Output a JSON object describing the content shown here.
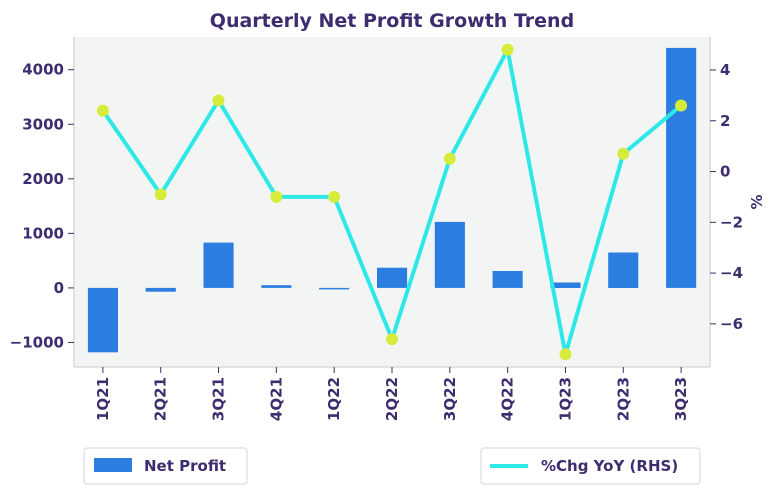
{
  "chart_data": {
    "type": "bar",
    "title": "Quarterly Net Profit Growth Trend",
    "categories": [
      "1Q21",
      "2Q21",
      "3Q21",
      "4Q21",
      "1Q22",
      "2Q22",
      "3Q22",
      "4Q22",
      "1Q23",
      "2Q23",
      "3Q23"
    ],
    "series": [
      {
        "name": "Net Profit",
        "type": "bar",
        "axis": "left",
        "color": "#2b7de0",
        "values": [
          -1180,
          -70,
          830,
          50,
          -20,
          370,
          1210,
          310,
          100,
          650,
          4400
        ]
      },
      {
        "name": "%Chg YoY (RHS)",
        "type": "line",
        "axis": "right",
        "color": "#2ee8e8",
        "marker_color": "#d7ec3a",
        "values": [
          2.4,
          -0.9,
          2.8,
          -1.0,
          -1.0,
          -6.6,
          0.5,
          4.8,
          -7.2,
          0.7,
          2.6
        ]
      }
    ],
    "y_left": {
      "ylim": [
        -1450,
        4600
      ],
      "ticks": [
        -1000,
        0,
        1000,
        2000,
        3000,
        4000
      ],
      "ylabel": ""
    },
    "y_right": {
      "ylim": [
        -7.7,
        5.3
      ],
      "ticks": [
        -6,
        -4,
        -2,
        0,
        2,
        4
      ],
      "ylabel": "%"
    },
    "legend": [
      {
        "label": "Net Profit",
        "kind": "bar",
        "placement": "bottom-left"
      },
      {
        "label": "%Chg YoY (RHS)",
        "kind": "line",
        "placement": "bottom-right"
      }
    ],
    "grid": false,
    "plot_background": "#f3f5f4",
    "text_color": "#3d2c6e"
  }
}
